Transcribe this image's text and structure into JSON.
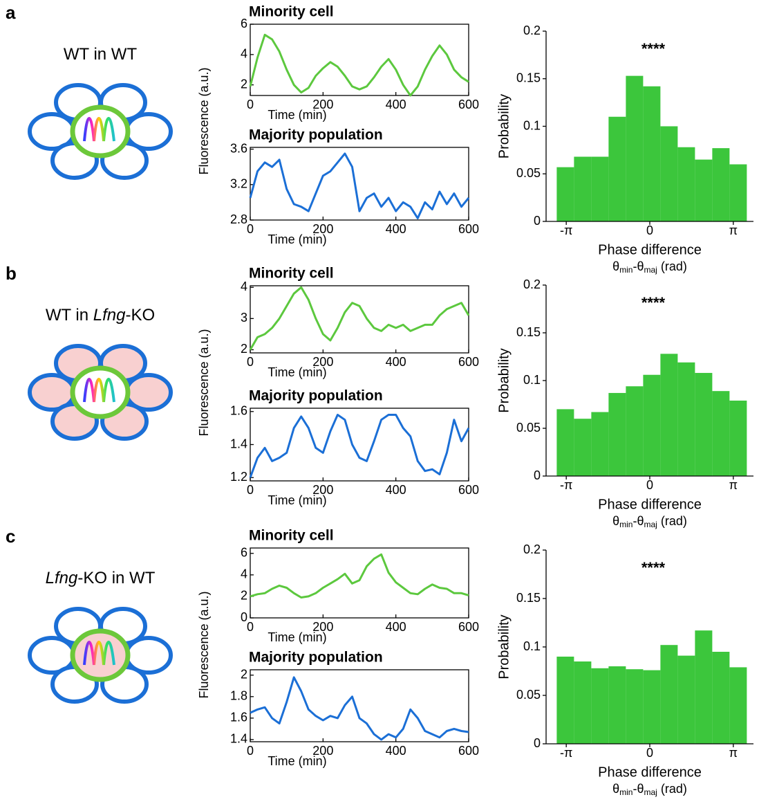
{
  "panels": [
    {
      "letter": "a",
      "condition": [
        {
          "text": "WT in WT"
        }
      ],
      "neighbor_fill": "#ffffff",
      "center_fill": "#ffffff"
    },
    {
      "letter": "b",
      "condition": [
        {
          "text": "WT in "
        },
        {
          "text": "Lfng",
          "italic": true
        },
        {
          "text": "-KO"
        }
      ],
      "neighbor_fill": "#f8d0d0",
      "center_fill": "#ffffff"
    },
    {
      "letter": "c",
      "condition": [
        {
          "text": "Lfng",
          "italic": true
        },
        {
          "text": "-KO in WT"
        }
      ],
      "neighbor_fill": "#ffffff",
      "center_fill": "#f8d0d0"
    }
  ],
  "chart_data": [
    {
      "type": "line",
      "title": "Minority cell",
      "title_color": "#2e9e2e",
      "xlabel": "Time (min)",
      "ylabel": "Fluorescence (a.u.)",
      "x": [
        0,
        20,
        40,
        60,
        80,
        100,
        120,
        140,
        160,
        180,
        200,
        220,
        240,
        260,
        280,
        300,
        320,
        340,
        360,
        380,
        400,
        420,
        440,
        460,
        480,
        500,
        520,
        540,
        560,
        580,
        600
      ],
      "series": [
        {
          "color": "#5cc83e",
          "values": [
            1.9,
            3.8,
            5.3,
            5.0,
            4.2,
            3.0,
            2.0,
            1.5,
            1.8,
            2.6,
            3.1,
            3.5,
            3.2,
            2.6,
            1.9,
            1.7,
            1.9,
            2.5,
            3.2,
            3.7,
            3.0,
            2.0,
            1.3,
            1.9,
            3.0,
            3.9,
            4.6,
            4.0,
            3.0,
            2.5,
            2.2
          ]
        }
      ],
      "xlim": [
        0,
        600
      ],
      "xticks": [
        0,
        200,
        400,
        600
      ],
      "ylim": [
        1.3,
        6
      ],
      "yticks": [
        2,
        4,
        6
      ]
    },
    {
      "type": "line",
      "title": "Majority population",
      "title_color": "#1b6fd6",
      "xlabel": "Time (min)",
      "x": [
        0,
        20,
        40,
        60,
        80,
        100,
        120,
        140,
        160,
        180,
        200,
        220,
        240,
        260,
        280,
        300,
        320,
        340,
        360,
        380,
        400,
        420,
        440,
        460,
        480,
        500,
        520,
        540,
        560,
        580,
        600
      ],
      "series": [
        {
          "color": "#1b6fd6",
          "values": [
            3.05,
            3.35,
            3.45,
            3.4,
            3.48,
            3.15,
            2.98,
            2.95,
            2.9,
            3.1,
            3.3,
            3.35,
            3.45,
            3.55,
            3.4,
            2.9,
            3.05,
            3.1,
            2.95,
            3.05,
            2.9,
            3.0,
            2.95,
            2.82,
            3.0,
            2.92,
            3.12,
            2.98,
            3.1,
            2.95,
            3.05
          ]
        }
      ],
      "xlim": [
        0,
        600
      ],
      "xticks": [
        0,
        200,
        400,
        600
      ],
      "ylim": [
        2.8,
        3.62
      ],
      "yticks": [
        2.8,
        3.2,
        3.6
      ]
    },
    {
      "type": "histogram",
      "annotation": "****",
      "xlabel": "Phase difference",
      "xlabel_line2": [
        {
          "text": "θ"
        },
        {
          "text": "min",
          "sub": true
        },
        {
          "text": "-θ"
        },
        {
          "text": "maj",
          "sub": true
        },
        {
          "text": " (rad)"
        }
      ],
      "ylabel": "Probability",
      "color": "#3cc63c",
      "bins": [
        -3.5,
        -2.85,
        -2.2,
        -1.55,
        -0.9,
        -0.25,
        0.4,
        1.05,
        1.7,
        2.35,
        3.0,
        3.65
      ],
      "values": [
        0.057,
        0.068,
        0.068,
        0.11,
        0.153,
        0.142,
        0.1,
        0.078,
        0.065,
        0.077,
        0.06
      ],
      "xlim": [
        -3.9,
        3.9
      ],
      "xticks": [
        {
          "value": -3.14159,
          "label": "-π"
        },
        0,
        {
          "value": 3.14159,
          "label": "π"
        }
      ],
      "ylim": [
        0,
        0.2
      ],
      "yticks": [
        0,
        0.05,
        0.1,
        0.15,
        0.2
      ]
    },
    {
      "type": "line",
      "title": "Minority cell",
      "title_color": "#2e9e2e",
      "xlabel": "Time (min)",
      "ylabel": "Fluorescence (a.u.)",
      "x": [
        0,
        20,
        40,
        60,
        80,
        100,
        120,
        140,
        160,
        180,
        200,
        220,
        240,
        260,
        280,
        300,
        320,
        340,
        360,
        380,
        400,
        420,
        440,
        460,
        480,
        500,
        520,
        540,
        560,
        580,
        600
      ],
      "series": [
        {
          "color": "#5cc83e",
          "values": [
            2.0,
            2.4,
            2.5,
            2.7,
            3.0,
            3.4,
            3.8,
            4.0,
            3.6,
            3.0,
            2.5,
            2.3,
            2.7,
            3.2,
            3.5,
            3.4,
            3.0,
            2.7,
            2.6,
            2.8,
            2.7,
            2.8,
            2.6,
            2.7,
            2.8,
            2.8,
            3.1,
            3.3,
            3.4,
            3.5,
            3.1
          ]
        }
      ],
      "xlim": [
        0,
        600
      ],
      "xticks": [
        0,
        200,
        400,
        600
      ],
      "ylim": [
        1.9,
        4.05
      ],
      "yticks": [
        2,
        3,
        4
      ]
    },
    {
      "type": "line",
      "title": "Majority population",
      "title_color": "#1b6fd6",
      "xlabel": "Time (min)",
      "x": [
        0,
        20,
        40,
        60,
        80,
        100,
        120,
        140,
        160,
        180,
        200,
        220,
        240,
        260,
        280,
        300,
        320,
        340,
        360,
        380,
        400,
        420,
        440,
        460,
        480,
        500,
        520,
        540,
        560,
        580,
        600
      ],
      "series": [
        {
          "color": "#1b6fd6",
          "values": [
            1.2,
            1.32,
            1.38,
            1.3,
            1.32,
            1.35,
            1.5,
            1.57,
            1.5,
            1.38,
            1.35,
            1.48,
            1.58,
            1.55,
            1.4,
            1.32,
            1.3,
            1.42,
            1.55,
            1.58,
            1.58,
            1.5,
            1.45,
            1.3,
            1.24,
            1.25,
            1.22,
            1.35,
            1.55,
            1.42,
            1.5
          ]
        }
      ],
      "xlim": [
        0,
        600
      ],
      "xticks": [
        0,
        200,
        400,
        600
      ],
      "ylim": [
        1.18,
        1.62
      ],
      "yticks": [
        1.2,
        1.4,
        1.6
      ]
    },
    {
      "type": "histogram",
      "annotation": "****",
      "xlabel": "Phase difference",
      "xlabel_line2": [
        {
          "text": "θ"
        },
        {
          "text": "min",
          "sub": true
        },
        {
          "text": "-θ"
        },
        {
          "text": "maj",
          "sub": true
        },
        {
          "text": " (rad)"
        }
      ],
      "ylabel": "Probability",
      "color": "#3cc63c",
      "bins": [
        -3.5,
        -2.85,
        -2.2,
        -1.55,
        -0.9,
        -0.25,
        0.4,
        1.05,
        1.7,
        2.35,
        3.0,
        3.65
      ],
      "values": [
        0.07,
        0.06,
        0.067,
        0.087,
        0.094,
        0.106,
        0.128,
        0.119,
        0.108,
        0.089,
        0.079
      ],
      "xlim": [
        -3.9,
        3.9
      ],
      "xticks": [
        {
          "value": -3.14159,
          "label": "-π"
        },
        0,
        {
          "value": 3.14159,
          "label": "π"
        }
      ],
      "ylim": [
        0,
        0.2
      ],
      "yticks": [
        0,
        0.05,
        0.1,
        0.15,
        0.2
      ]
    },
    {
      "type": "line",
      "title": "Minority cell",
      "title_color": "#2e9e2e",
      "xlabel": "Time (min)",
      "ylabel": "Fluorescence (a.u.)",
      "x": [
        0,
        20,
        40,
        60,
        80,
        100,
        120,
        140,
        160,
        180,
        200,
        220,
        240,
        260,
        280,
        300,
        320,
        340,
        360,
        380,
        400,
        420,
        440,
        460,
        480,
        500,
        520,
        540,
        560,
        580,
        600
      ],
      "series": [
        {
          "color": "#5cc83e",
          "values": [
            2.0,
            2.2,
            2.3,
            2.7,
            3.0,
            2.8,
            2.3,
            1.9,
            2.0,
            2.3,
            2.8,
            3.2,
            3.6,
            4.1,
            3.2,
            3.5,
            4.8,
            5.5,
            5.9,
            4.2,
            3.3,
            2.8,
            2.3,
            2.2,
            2.7,
            3.1,
            2.8,
            2.7,
            2.3,
            2.3,
            2.1
          ]
        }
      ],
      "xlim": [
        0,
        600
      ],
      "xticks": [
        0,
        200,
        400,
        600
      ],
      "ylim": [
        0,
        6.5
      ],
      "yticks": [
        0,
        2,
        4,
        6
      ]
    },
    {
      "type": "line",
      "title": "Majority population",
      "title_color": "#1b6fd6",
      "xlabel": "Time (min)",
      "x": [
        0,
        20,
        40,
        60,
        80,
        100,
        120,
        140,
        160,
        180,
        200,
        220,
        240,
        260,
        280,
        300,
        320,
        340,
        360,
        380,
        400,
        420,
        440,
        460,
        480,
        500,
        520,
        540,
        560,
        580,
        600
      ],
      "series": [
        {
          "color": "#1b6fd6",
          "values": [
            1.65,
            1.68,
            1.7,
            1.6,
            1.55,
            1.75,
            1.98,
            1.85,
            1.68,
            1.62,
            1.58,
            1.62,
            1.6,
            1.72,
            1.8,
            1.6,
            1.55,
            1.45,
            1.4,
            1.45,
            1.42,
            1.5,
            1.68,
            1.6,
            1.48,
            1.45,
            1.42,
            1.48,
            1.5,
            1.48,
            1.47
          ]
        }
      ],
      "xlim": [
        0,
        600
      ],
      "xticks": [
        0,
        200,
        400,
        600
      ],
      "ylim": [
        1.38,
        2.05
      ],
      "yticks": [
        1.4,
        1.6,
        1.8,
        2
      ]
    },
    {
      "type": "histogram",
      "annotation": "****",
      "xlabel": "Phase difference",
      "xlabel_line2": [
        {
          "text": "θ"
        },
        {
          "text": "min",
          "sub": true
        },
        {
          "text": "-θ"
        },
        {
          "text": "maj",
          "sub": true
        },
        {
          "text": " (rad)"
        }
      ],
      "ylabel": "Probability",
      "color": "#3cc63c",
      "bins": [
        -3.5,
        -2.85,
        -2.2,
        -1.55,
        -0.9,
        -0.25,
        0.4,
        1.05,
        1.7,
        2.35,
        3.0,
        3.65
      ],
      "values": [
        0.09,
        0.085,
        0.078,
        0.08,
        0.077,
        0.076,
        0.102,
        0.091,
        0.117,
        0.095,
        0.079
      ],
      "xlim": [
        -3.9,
        3.9
      ],
      "xticks": [
        {
          "value": -3.14159,
          "label": "-π"
        },
        0,
        {
          "value": 3.14159,
          "label": "π"
        }
      ],
      "ylim": [
        0,
        0.2
      ],
      "yticks": [
        0,
        0.05,
        0.1,
        0.15,
        0.2
      ]
    }
  ]
}
